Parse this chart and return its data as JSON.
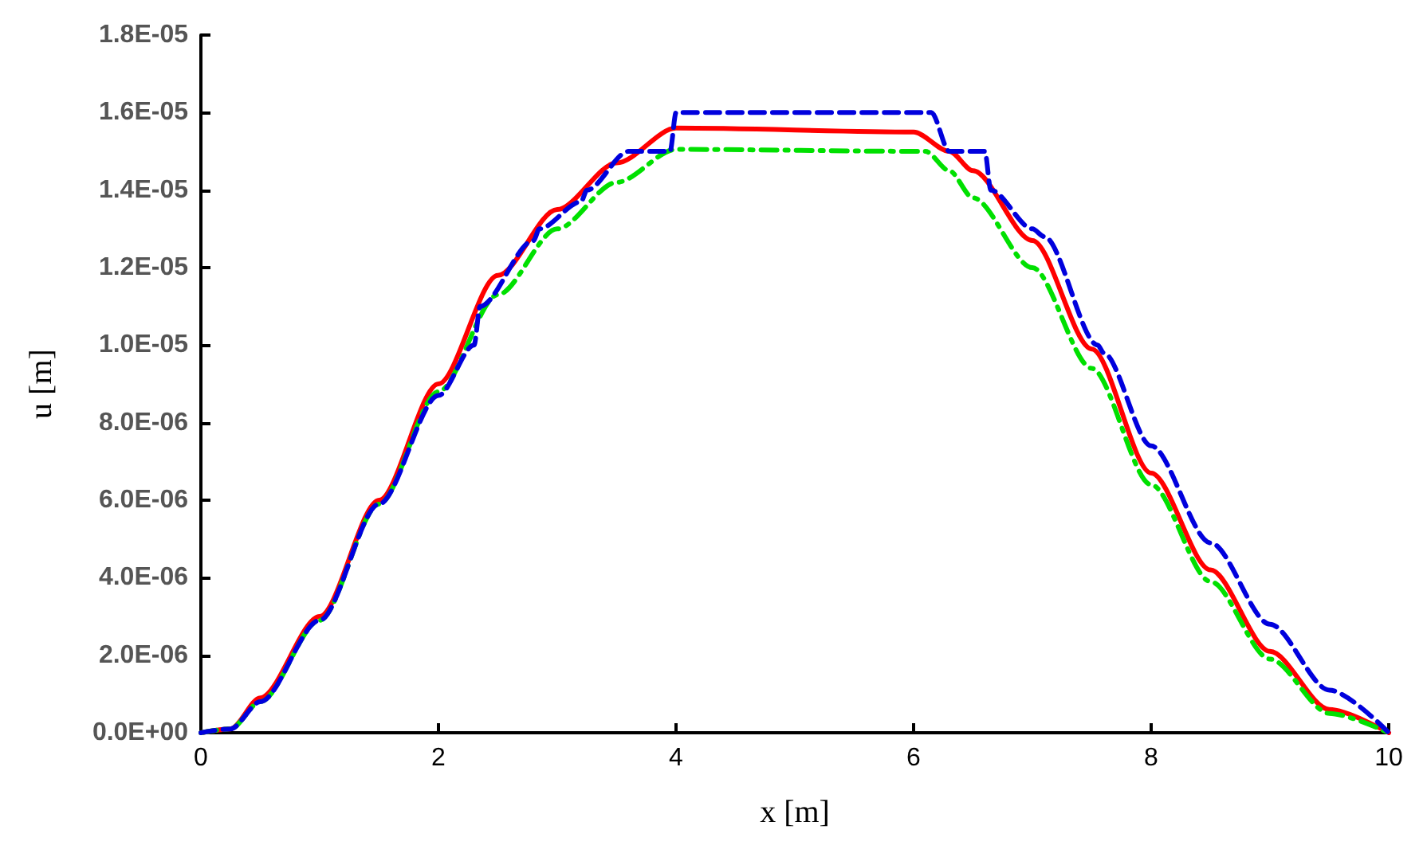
{
  "chart_data": {
    "type": "line",
    "xlabel": "x [m]",
    "ylabel": "u [m]",
    "xlim": [
      0,
      10
    ],
    "xticks": [
      0,
      2,
      4,
      6,
      8,
      10
    ],
    "ylim": [
      0,
      1.8e-05
    ],
    "yticks": [
      {
        "value": 0,
        "label": "0.0E+00"
      },
      {
        "value": 2e-06,
        "label": "2.0E-06"
      },
      {
        "value": 4e-06,
        "label": "4.0E-06"
      },
      {
        "value": 6e-06,
        "label": "6.0E-06"
      },
      {
        "value": 8e-06,
        "label": "8.0E-06"
      },
      {
        "value": 1e-05,
        "label": "1.0E-05"
      },
      {
        "value": 1.2e-05,
        "label": "1.2E-05"
      },
      {
        "value": 1.4e-05,
        "label": "1.4E-05"
      },
      {
        "value": 1.6e-05,
        "label": "1.6E-05"
      },
      {
        "value": 1.8e-05,
        "label": "1.8E-05"
      }
    ],
    "grid": false,
    "marker": "none",
    "series": [
      {
        "color": "#ff0000",
        "line_style": "solid",
        "x": [
          0,
          0.25,
          0.5,
          1,
          1.5,
          2,
          2.5,
          3,
          3.5,
          4,
          6,
          6.3,
          6.5,
          7,
          7.5,
          8,
          8.5,
          9,
          9.5,
          10
        ],
        "values": [
          0,
          1e-07,
          9e-07,
          3e-06,
          6e-06,
          9e-06,
          1.18e-05,
          1.35e-05,
          1.47e-05,
          1.56e-05,
          1.55e-05,
          1.5e-05,
          1.45e-05,
          1.27e-05,
          9.9e-06,
          6.7e-06,
          4.2e-06,
          2.1e-06,
          6e-07,
          0
        ]
      },
      {
        "color": "#00e000",
        "line_style": "dashdot",
        "x": [
          0,
          0.25,
          0.5,
          1,
          1.5,
          2,
          2.5,
          3,
          3.5,
          4,
          6.1,
          6.3,
          6.5,
          7,
          7.5,
          8,
          8.5,
          9,
          9.5,
          10
        ],
        "values": [
          0,
          1e-07,
          8e-07,
          2.9e-06,
          5.9e-06,
          8.8e-06,
          1.13e-05,
          1.3e-05,
          1.42e-05,
          1.505e-05,
          1.5e-05,
          1.45e-05,
          1.38e-05,
          1.2e-05,
          9.4e-06,
          6.4e-06,
          3.9e-06,
          1.9e-06,
          5e-07,
          0
        ]
      },
      {
        "color": "#0000dd",
        "line_style": "dashed",
        "x": [
          0,
          0.25,
          0.5,
          1,
          1.5,
          2,
          2.3,
          2.35,
          2.8,
          2.85,
          3.2,
          3.25,
          3.6,
          3.95,
          4.0,
          6.15,
          6.3,
          6.6,
          6.65,
          7.0,
          7.1,
          7.55,
          7.6,
          8,
          8.5,
          9,
          9.5,
          10
        ],
        "values": [
          0,
          1e-07,
          8e-07,
          2.9e-06,
          5.9e-06,
          8.7e-06,
          1e-05,
          1.1e-05,
          1.27e-05,
          1.3e-05,
          1.37e-05,
          1.4e-05,
          1.5e-05,
          1.5e-05,
          1.6e-05,
          1.6e-05,
          1.5e-05,
          1.5e-05,
          1.4e-05,
          1.3e-05,
          1.28e-05,
          1e-05,
          9.8e-06,
          7.4e-06,
          4.9e-06,
          2.8e-06,
          1.1e-06,
          0
        ]
      }
    ]
  }
}
